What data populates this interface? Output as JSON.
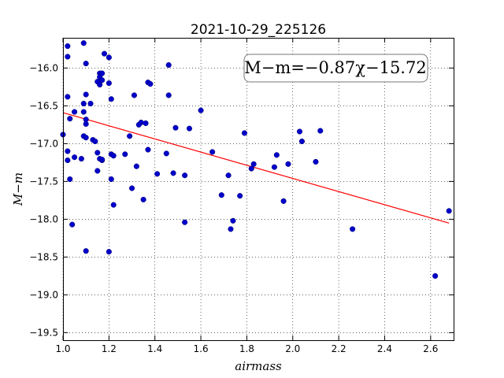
{
  "chart_data": {
    "type": "scatter",
    "title": "2021-10-29_225126",
    "xlabel": "airmass",
    "ylabel": "M−m",
    "xlim": [
      1.0,
      2.7
    ],
    "ylim": [
      -19.6,
      -15.6
    ],
    "y_inverted": true,
    "grid": true,
    "xticks": [
      "1.0",
      "1.2",
      "1.4",
      "1.6",
      "1.8",
      "2.0",
      "2.2",
      "2.4",
      "2.6"
    ],
    "yticks": [
      "−16.0",
      "−16.5",
      "−17.0",
      "−17.5",
      "−18.0",
      "−18.5",
      "−19.0",
      "−19.5"
    ],
    "annotation": "M−m=−0.87χ−15.72",
    "annotation_position": "top-right",
    "fit": {
      "slope": -0.87,
      "intercept": -15.72,
      "color": "#ff0000"
    },
    "point_color": "#0000cc",
    "points": [
      [
        1.02,
        -15.71
      ],
      [
        1.02,
        -15.85
      ],
      [
        1.09,
        -15.67
      ],
      [
        1.18,
        -15.81
      ],
      [
        1.2,
        -15.86
      ],
      [
        1.1,
        -15.94
      ],
      [
        1.16,
        -16.07
      ],
      [
        1.17,
        -16.07
      ],
      [
        1.16,
        -16.12
      ],
      [
        1.15,
        -16.18
      ],
      [
        1.17,
        -16.16
      ],
      [
        1.16,
        -16.22
      ],
      [
        1.2,
        -16.2
      ],
      [
        1.46,
        -15.96
      ],
      [
        1.37,
        -16.19
      ],
      [
        1.38,
        -16.21
      ],
      [
        1.02,
        -16.38
      ],
      [
        1.1,
        -16.35
      ],
      [
        1.21,
        -16.41
      ],
      [
        1.31,
        -16.36
      ],
      [
        1.46,
        -16.36
      ],
      [
        1.09,
        -16.47
      ],
      [
        1.12,
        -16.47
      ],
      [
        1.05,
        -16.58
      ],
      [
        1.09,
        -16.58
      ],
      [
        1.03,
        -16.67
      ],
      [
        1.1,
        -16.68
      ],
      [
        1.1,
        -16.74
      ],
      [
        1.34,
        -16.72
      ],
      [
        1.36,
        -16.73
      ],
      [
        1.33,
        -16.75
      ],
      [
        1.6,
        -16.56
      ],
      [
        1.0,
        -16.88
      ],
      [
        1.09,
        -16.9
      ],
      [
        1.1,
        -16.92
      ],
      [
        1.29,
        -16.9
      ],
      [
        1.13,
        -16.95
      ],
      [
        1.14,
        -16.97
      ],
      [
        1.49,
        -16.79
      ],
      [
        1.55,
        -16.8
      ],
      [
        1.79,
        -16.86
      ],
      [
        2.03,
        -16.84
      ],
      [
        2.12,
        -16.83
      ],
      [
        2.04,
        -16.97
      ],
      [
        1.02,
        -17.1
      ],
      [
        1.37,
        -17.08
      ],
      [
        1.15,
        -17.12
      ],
      [
        1.21,
        -17.14
      ],
      [
        1.22,
        -17.16
      ],
      [
        1.27,
        -17.14
      ],
      [
        1.45,
        -17.13
      ],
      [
        1.65,
        -17.11
      ],
      [
        1.05,
        -17.18
      ],
      [
        1.08,
        -17.2
      ],
      [
        1.16,
        -17.2
      ],
      [
        1.17,
        -17.22
      ],
      [
        1.17,
        -17.21
      ],
      [
        1.02,
        -17.22
      ],
      [
        1.93,
        -17.15
      ],
      [
        2.1,
        -17.24
      ],
      [
        1.32,
        -17.3
      ],
      [
        1.83,
        -17.27
      ],
      [
        1.98,
        -17.27
      ],
      [
        1.82,
        -17.33
      ],
      [
        1.92,
        -17.31
      ],
      [
        1.15,
        -17.36
      ],
      [
        1.41,
        -17.4
      ],
      [
        1.48,
        -17.39
      ],
      [
        1.53,
        -17.42
      ],
      [
        1.72,
        -17.42
      ],
      [
        1.03,
        -17.47
      ],
      [
        1.21,
        -17.47
      ],
      [
        1.3,
        -17.59
      ],
      [
        1.69,
        -17.68
      ],
      [
        1.77,
        -17.69
      ],
      [
        1.35,
        -17.74
      ],
      [
        1.22,
        -17.81
      ],
      [
        1.96,
        -17.76
      ],
      [
        2.68,
        -17.89
      ],
      [
        1.74,
        -18.02
      ],
      [
        1.53,
        -18.04
      ],
      [
        1.04,
        -18.07
      ],
      [
        1.73,
        -18.13
      ],
      [
        2.26,
        -18.13
      ],
      [
        1.1,
        -18.42
      ],
      [
        1.2,
        -18.43
      ],
      [
        2.62,
        -18.75
      ]
    ]
  }
}
